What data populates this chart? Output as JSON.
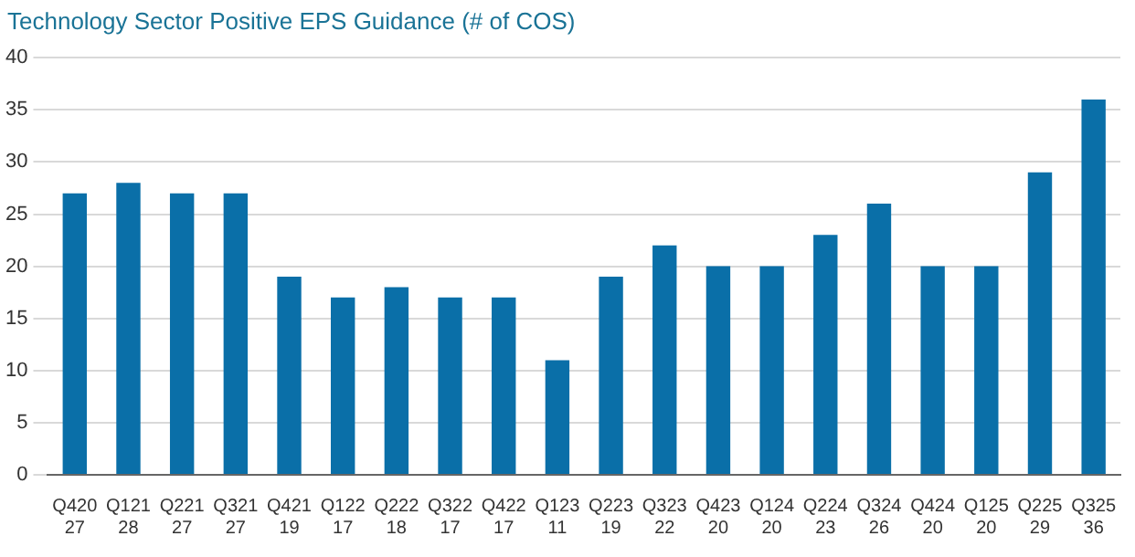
{
  "chart_data": {
    "type": "bar",
    "title": "Technology Sector Positive EPS Guidance (# of COS)",
    "categories": [
      "Q420",
      "Q121",
      "Q221",
      "Q321",
      "Q421",
      "Q122",
      "Q222",
      "Q322",
      "Q422",
      "Q123",
      "Q223",
      "Q323",
      "Q423",
      "Q124",
      "Q224",
      "Q324",
      "Q424",
      "Q125",
      "Q225",
      "Q325"
    ],
    "values": [
      27,
      28,
      27,
      27,
      19,
      17,
      18,
      17,
      17,
      11,
      19,
      22,
      20,
      20,
      23,
      26,
      20,
      20,
      29,
      36
    ],
    "color": "#0a6fa8",
    "ylim": [
      0,
      40
    ],
    "yticks": [
      0,
      5,
      10,
      15,
      20,
      25,
      30,
      35,
      40
    ],
    "grid": "y",
    "data_labels": true
  }
}
